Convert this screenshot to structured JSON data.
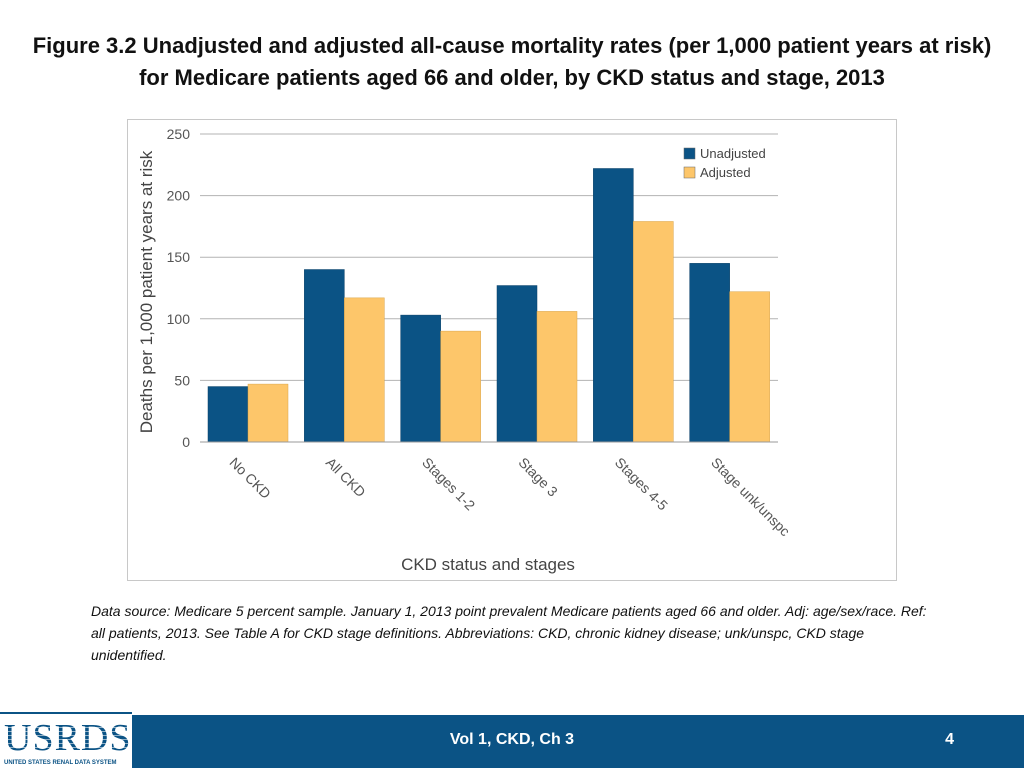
{
  "title": "Figure 3.2  Unadjusted and adjusted all-cause mortality rates (per 1,000 patient years at risk) for Medicare patients aged 66 and older, by CKD status and stage, 2013",
  "chart_data": {
    "type": "bar",
    "categories": [
      "No CKD",
      "All CKD",
      "Stages 1-2",
      "Stage 3",
      "Stages 4-5",
      "Stage unk/unspc"
    ],
    "series": [
      {
        "name": "Unadjusted",
        "color": "#0b5385",
        "values": [
          45,
          140,
          103,
          127,
          222,
          145
        ]
      },
      {
        "name": "Adjusted",
        "color": "#fdc66a",
        "values": [
          47,
          117,
          90,
          106,
          179,
          122
        ]
      }
    ],
    "xlabel": "CKD status and stages",
    "ylabel": "Deaths per 1,000 patient years at risk",
    "ylim": [
      0,
      250
    ],
    "yticks": [
      0,
      50,
      100,
      150,
      200,
      250
    ],
    "grid": true,
    "legend": "top-right"
  },
  "note": "Data source: Medicare 5 percent sample. January 1, 2013 point prevalent Medicare patients aged 66 and older. Adj: age/sex/race. Ref: all patients, 2013. See Table A for CKD stage definitions. Abbreviations: CKD, chronic kidney disease; unk/unspc, CKD stage unidentified.",
  "footer": {
    "label": "Vol 1, CKD, Ch 3",
    "page": "4"
  },
  "logo": {
    "name": "USRDS",
    "subtitle": "UNITED STATES RENAL DATA SYSTEM"
  }
}
